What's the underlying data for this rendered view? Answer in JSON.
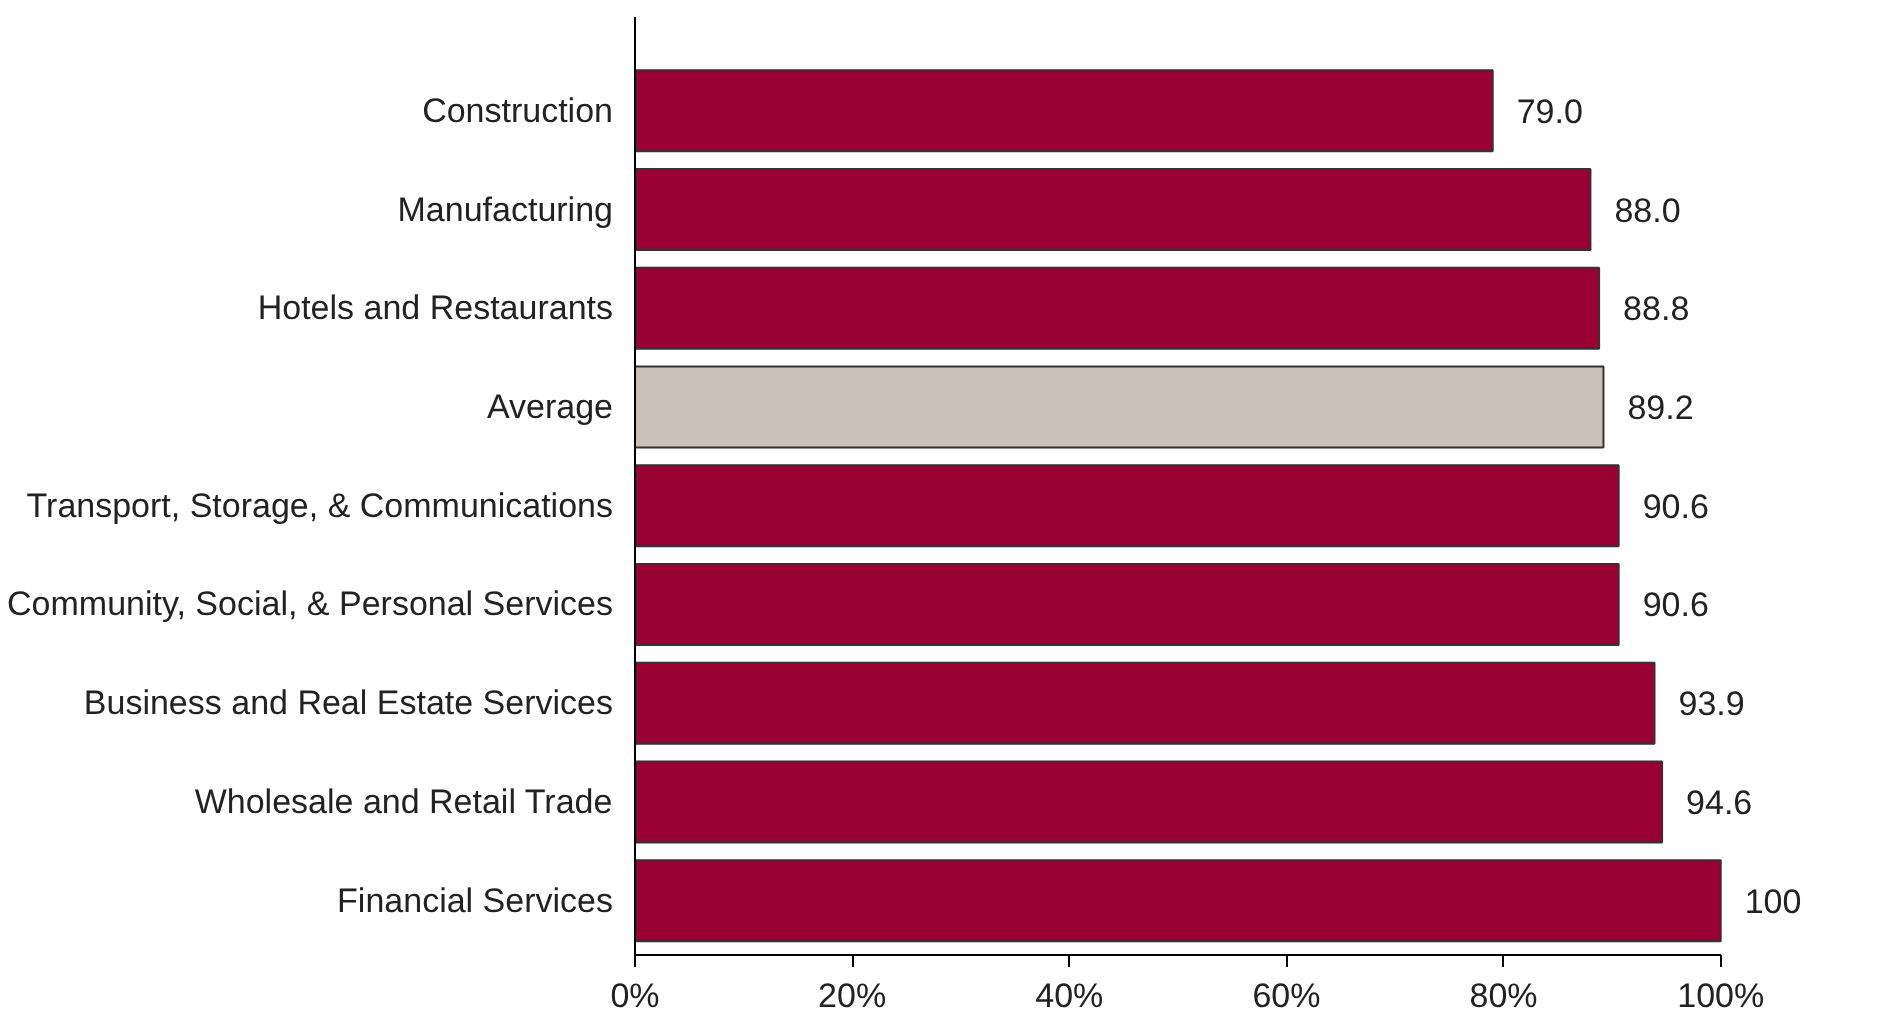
{
  "chart_data": {
    "type": "bar",
    "orientation": "horizontal",
    "categories": [
      "Construction",
      "Manufacturing",
      "Hotels and Restaurants",
      "Average",
      "Transport, Storage, & Communications",
      "Community, Social, & Personal Services",
      "Business and Real Estate Services",
      "Wholesale and Retail Trade",
      "Financial Services"
    ],
    "values": [
      79.0,
      88.0,
      88.8,
      89.2,
      90.6,
      90.6,
      93.9,
      94.6,
      100
    ],
    "colors": [
      "#990033",
      "#990033",
      "#990033",
      "#c9c0b8",
      "#990033",
      "#990033",
      "#990033",
      "#990033",
      "#990033"
    ],
    "value_labels": [
      "79.0",
      "88.0",
      "88.8",
      "89.2",
      "90.6",
      "90.6",
      "93.9",
      "94.6",
      "100"
    ],
    "xlim": [
      0,
      100
    ],
    "xticks": [
      {
        "value": 0,
        "label": "0%"
      },
      {
        "value": 20,
        "label": "20%"
      },
      {
        "value": 40,
        "label": "40%"
      },
      {
        "value": 60,
        "label": "60%"
      },
      {
        "value": 80,
        "label": "80%"
      },
      {
        "value": 100,
        "label": "100%"
      }
    ],
    "grid": false
  }
}
